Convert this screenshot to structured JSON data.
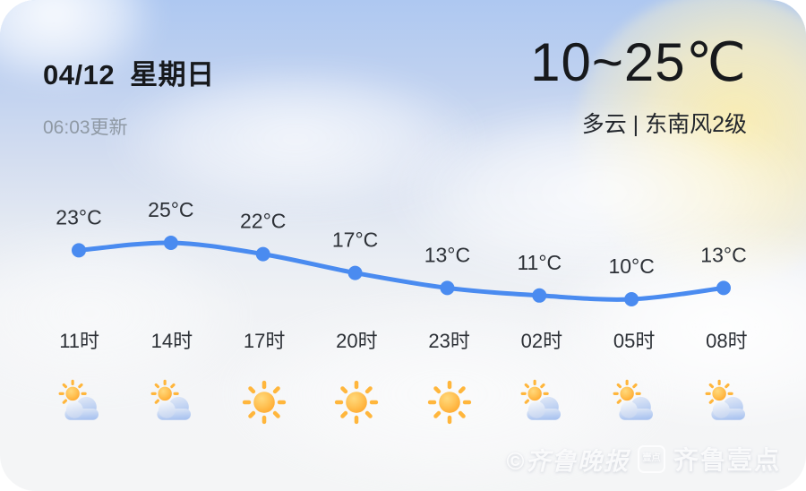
{
  "header": {
    "date": "04/12",
    "weekday": "星期日",
    "updated": "06:03更新",
    "temp_range": "10~25℃",
    "condition": "多云 | 东南风2级"
  },
  "chart_data": {
    "type": "line",
    "title": "",
    "xlabel": "",
    "ylabel": "",
    "x": [
      "11时",
      "14时",
      "17时",
      "20时",
      "23时",
      "02时",
      "05时",
      "08时"
    ],
    "series": [
      {
        "name": "hourly-temperature",
        "values": [
          23,
          25,
          22,
          17,
          13,
          11,
          10,
          13
        ],
        "color": "#4a8bf0"
      }
    ],
    "point_labels": [
      "23°C",
      "25°C",
      "22°C",
      "17°C",
      "13°C",
      "11°C",
      "10°C",
      "13°C"
    ],
    "unit": "°C",
    "ylim": [
      10,
      25
    ],
    "grid": false,
    "legend": "none"
  },
  "hourly": [
    {
      "time": "11时",
      "icon": "partly-cloudy-icon"
    },
    {
      "time": "14时",
      "icon": "partly-cloudy-icon"
    },
    {
      "time": "17时",
      "icon": "sunny-icon"
    },
    {
      "time": "20时",
      "icon": "sunny-icon"
    },
    {
      "time": "23时",
      "icon": "sunny-icon"
    },
    {
      "time": "02时",
      "icon": "partly-cloudy-icon"
    },
    {
      "time": "05时",
      "icon": "partly-cloudy-icon"
    },
    {
      "time": "08时",
      "icon": "partly-cloudy-icon"
    }
  ],
  "watermark": {
    "press": "©齐鲁晚报",
    "badge": "壹点",
    "brand": "齐鲁壹点"
  },
  "colors": {
    "line": "#4a8bf0",
    "text_dark": "#17191c",
    "text_gray": "#8f99a4",
    "label": "#2c3036"
  }
}
